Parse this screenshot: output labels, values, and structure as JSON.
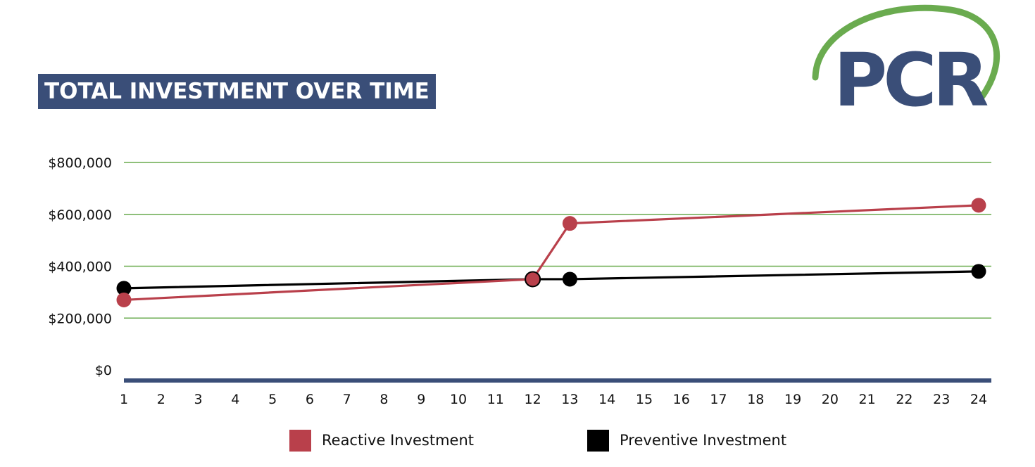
{
  "title": "TOTAL INVESTMENT OVER TIME",
  "logo": {
    "text": "PCR",
    "color": "#3a4e78",
    "arc_color": "#6aab4f"
  },
  "colors": {
    "banner_bg": "#3a4e78",
    "grid": "#6aab4f",
    "baseline": "#3a4e78",
    "reactive": "#b9404b",
    "preventive": "#000000"
  },
  "chart_data": {
    "type": "line",
    "title": "TOTAL INVESTMENT OVER TIME",
    "xlabel": "",
    "ylabel": "",
    "x_ticks": [
      "1",
      "2",
      "3",
      "4",
      "5",
      "6",
      "7",
      "8",
      "9",
      "10",
      "11",
      "12",
      "13",
      "14",
      "15",
      "16",
      "17",
      "18",
      "19",
      "20",
      "21",
      "22",
      "23",
      "24"
    ],
    "y_ticks": [
      "$0",
      "$200,000",
      "$400,000",
      "$600,000",
      "$800,000"
    ],
    "y_tick_values": [
      0,
      200000,
      400000,
      600000,
      800000
    ],
    "ylim": [
      0,
      800000
    ],
    "xlim": [
      1,
      24
    ],
    "grid": true,
    "legend_position": "bottom",
    "series": [
      {
        "name": "Reactive Investment",
        "color": "#b9404b",
        "points": [
          {
            "x": 1,
            "y": 270000
          },
          {
            "x": 12,
            "y": 350000
          },
          {
            "x": 13,
            "y": 565000
          },
          {
            "x": 24,
            "y": 635000
          }
        ]
      },
      {
        "name": "Preventive Investment",
        "color": "#000000",
        "points": [
          {
            "x": 1,
            "y": 315000
          },
          {
            "x": 12,
            "y": 350000
          },
          {
            "x": 13,
            "y": 350000
          },
          {
            "x": 24,
            "y": 380000
          }
        ]
      }
    ]
  }
}
